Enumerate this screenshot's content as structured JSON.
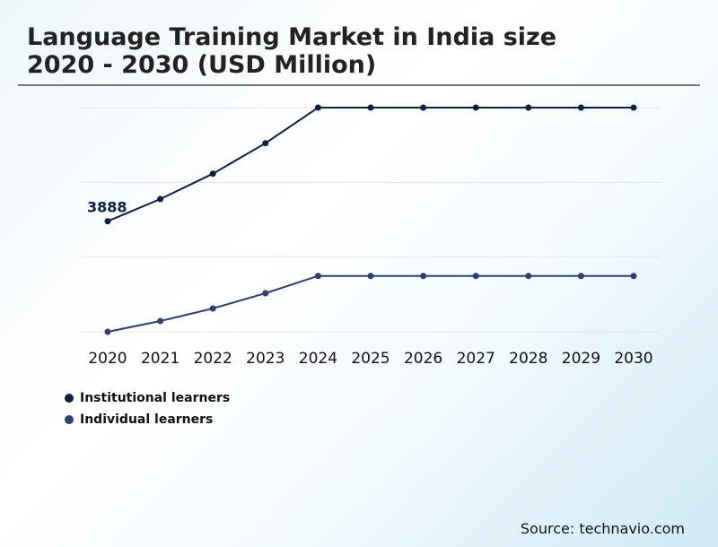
{
  "title_line1": "Language Training Market in India size",
  "title_line2": "2020 - 2030 (USD Million)",
  "source": "Source: technavio.com",
  "chart_data": {
    "type": "line",
    "title": "Language Training Market in India size 2020 - 2030 (USD Million)",
    "xlabel": "",
    "ylabel": "",
    "categories": [
      "2020",
      "2021",
      "2022",
      "2023",
      "2024",
      "2025",
      "2026",
      "2027",
      "2028",
      "2029",
      "2030"
    ],
    "ylim": [
      0,
      7883
    ],
    "grid": true,
    "legend_position": "bottom-left",
    "annotations": [
      {
        "series": "Institutional learners",
        "category": "2020",
        "text": "3888"
      }
    ],
    "series": [
      {
        "name": "Institutional learners",
        "color": "#0d1f45",
        "values": [
          3888,
          4666,
          5559,
          6631,
          7883,
          7883,
          7883,
          7883,
          7883,
          7883,
          7883
        ]
      },
      {
        "name": "Individual learners",
        "color": "#2c4170",
        "values": [
          0,
          378,
          820,
          1356,
          1964,
          1964,
          1964,
          1964,
          1964,
          1964,
          1964
        ]
      }
    ]
  }
}
